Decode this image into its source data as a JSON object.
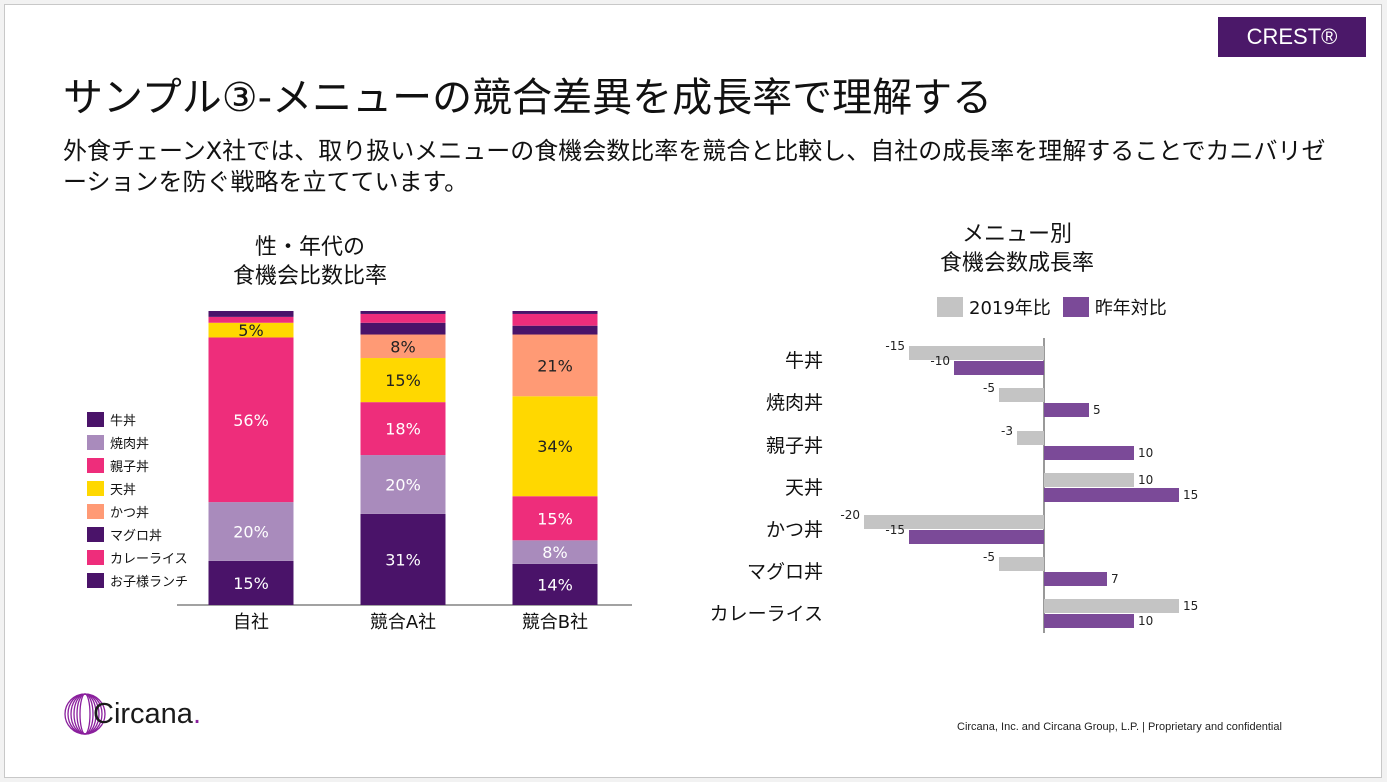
{
  "badge": "CREST®",
  "title": "サンプル③-メニューの競合差異を成長率で理解する",
  "subtitle": "外食チェーンX社では、取り扱いメニューの食機会数比率を競合と比較し、自社の成長率を理解することでカニバリゼーションを防ぐ戦略を立てています。",
  "logo": {
    "text": "Circana",
    "dot": "."
  },
  "footer": "Circana, Inc. and Circana Group, L.P. |  Proprietary and confidential",
  "chart_data": [
    {
      "type": "bar",
      "stacked": true,
      "title_lines": [
        "性・年代の",
        "食機会比数比率"
      ],
      "categories": [
        "自社",
        "競合A社",
        "競合B社"
      ],
      "ylim": [
        0,
        100
      ],
      "legend_position": "left",
      "series": [
        {
          "name": "牛丼",
          "color": "#4a1369",
          "values": [
            15,
            31,
            14
          ]
        },
        {
          "name": "焼肉丼",
          "color": "#a98bbc",
          "values": [
            20,
            20,
            8
          ]
        },
        {
          "name": "親子丼",
          "color": "#ee2d7b",
          "values": [
            56,
            18,
            15
          ]
        },
        {
          "name": "天丼",
          "color": "#ffd800",
          "values": [
            5,
            15,
            34
          ]
        },
        {
          "name": "かつ丼",
          "color": "#ff9a75",
          "values": [
            0,
            8,
            21
          ]
        },
        {
          "name": "マグロ丼",
          "color": "#4a1369",
          "values": [
            0,
            4,
            3
          ]
        },
        {
          "name": "カレーライス",
          "color": "#ee2d7b",
          "values": [
            2,
            3,
            4
          ]
        },
        {
          "name": "お子様ランチ",
          "color": "#4a1369",
          "values": [
            2,
            1,
            1
          ]
        }
      ],
      "data_labels": [
        [
          "15%",
          "20%",
          "56%",
          "5%",
          "",
          "",
          "",
          ""
        ],
        [
          "31%",
          "20%",
          "18%",
          "15%",
          "8%",
          "",
          "",
          ""
        ],
        [
          "14%",
          "8%",
          "15%",
          "34%",
          "21%",
          "",
          "",
          ""
        ]
      ]
    },
    {
      "type": "bar",
      "orientation": "horizontal",
      "title_lines": [
        "メニュー別",
        "食機会数成長率"
      ],
      "categories": [
        "牛丼",
        "焼肉丼",
        "親子丼",
        "天丼",
        "かつ丼",
        "マグロ丼",
        "カレーライス"
      ],
      "xlim": [
        -20,
        15
      ],
      "legend_position": "top",
      "series": [
        {
          "name": "2019年比",
          "color": "#c4c4c4",
          "values": [
            -15,
            -5,
            -3,
            10,
            -20,
            -5,
            15
          ]
        },
        {
          "name": "昨年対比",
          "color": "#7b4a98",
          "values": [
            -10,
            5,
            10,
            15,
            -15,
            7,
            10
          ]
        }
      ]
    }
  ]
}
